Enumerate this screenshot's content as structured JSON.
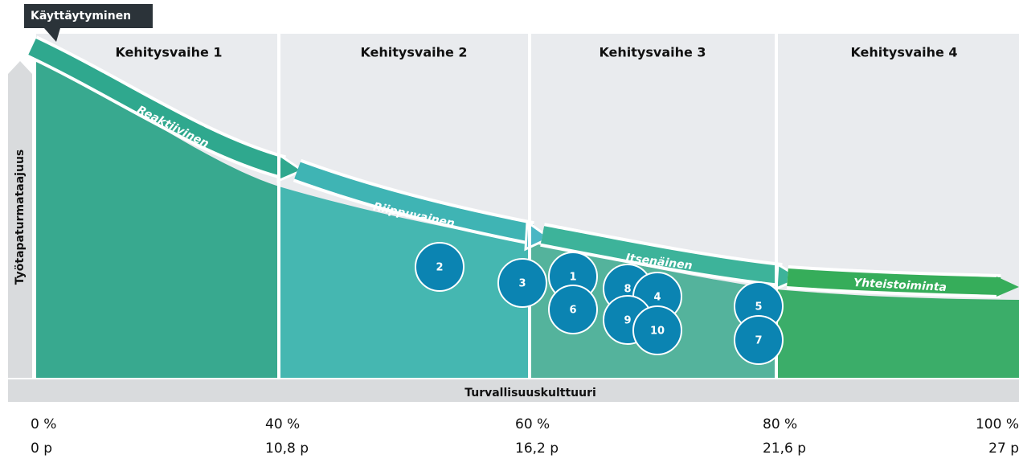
{
  "header": {
    "title": "Käyttäytyminen"
  },
  "phases": [
    "Kehitysvaihe 1",
    "Kehitysvaihe 2",
    "Kehitysvaihe 3",
    "Kehitysvaihe 4"
  ],
  "stages": [
    "Reaktiivinen",
    "Riippuvainen",
    "Itsenäinen",
    "Yhteistoiminta"
  ],
  "y_axis_label": "Työtapaturmataajuus",
  "x_axis_label": "Turvallisuuskulttuuri",
  "percent_ticks": [
    "0 %",
    "40 %",
    "60 %",
    "80 %",
    "100 %"
  ],
  "point_ticks": [
    "0 p",
    "10,8 p",
    "16,2 p",
    "21,6 p",
    "27 p"
  ],
  "markers": [
    "2",
    "3",
    "1",
    "6",
    "8",
    "4",
    "9",
    "10",
    "5",
    "7"
  ]
}
